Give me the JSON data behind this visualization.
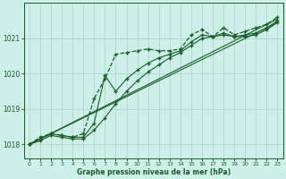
{
  "bg_color": "#cdf0e8",
  "grid_color": "#b0d8c8",
  "line_color": "#1a5c2a",
  "xlabel": "Graphe pression niveau de la mer (hPa)",
  "xlabel_color": "#1a5c2a",
  "tick_color": "#1a5c2a",
  "xlim": [
    -0.5,
    23.5
  ],
  "ylim": [
    1017.6,
    1022.0
  ],
  "yticks": [
    1018,
    1019,
    1020,
    1021
  ],
  "xticks": [
    0,
    1,
    2,
    3,
    4,
    5,
    6,
    7,
    8,
    9,
    10,
    11,
    12,
    13,
    14,
    15,
    16,
    17,
    18,
    19,
    20,
    21,
    22,
    23
  ],
  "lines": [
    {
      "x": [
        0,
        1,
        2,
        3,
        4,
        5,
        6,
        7,
        8,
        9,
        10,
        11,
        12,
        13,
        14,
        15,
        16,
        17,
        18,
        19,
        20,
        21,
        22,
        23
      ],
      "y": [
        1018.0,
        1018.2,
        1018.3,
        1018.25,
        1018.2,
        1018.3,
        1019.3,
        1019.85,
        1020.55,
        1020.6,
        1020.65,
        1020.7,
        1020.65,
        1020.65,
        1020.7,
        1021.1,
        1021.25,
        1021.05,
        1021.3,
        1021.1,
        1021.2,
        1021.3,
        1021.4,
        1021.6
      ],
      "marker": "+",
      "linestyle": "--",
      "linewidth": 0.9
    },
    {
      "x": [
        0,
        23
      ],
      "y": [
        1018.0,
        1021.55
      ],
      "marker": "None",
      "linestyle": "-",
      "linewidth": 0.8
    },
    {
      "x": [
        0,
        23
      ],
      "y": [
        1018.0,
        1021.45
      ],
      "marker": "None",
      "linestyle": "-",
      "linewidth": 0.8
    },
    {
      "x": [
        0,
        1,
        2,
        3,
        4,
        5,
        6,
        7,
        8,
        9,
        10,
        11,
        12,
        13,
        14,
        15,
        16,
        17,
        18,
        19,
        20,
        21,
        22,
        23
      ],
      "y": [
        1018.0,
        1018.15,
        1018.3,
        1018.25,
        1018.2,
        1018.2,
        1018.6,
        1019.95,
        1019.5,
        1019.85,
        1020.1,
        1020.3,
        1020.45,
        1020.55,
        1020.65,
        1020.9,
        1021.1,
        1021.05,
        1021.15,
        1021.05,
        1021.1,
        1021.15,
        1021.3,
        1021.5
      ],
      "marker": "+",
      "linestyle": "-",
      "linewidth": 0.8
    },
    {
      "x": [
        0,
        1,
        2,
        3,
        4,
        5,
        6,
        7,
        8,
        9,
        10,
        11,
        12,
        13,
        14,
        15,
        16,
        17,
        18,
        19,
        20,
        21,
        22,
        23
      ],
      "y": [
        1018.0,
        1018.1,
        1018.25,
        1018.2,
        1018.15,
        1018.15,
        1018.4,
        1018.75,
        1019.15,
        1019.5,
        1019.8,
        1020.05,
        1020.25,
        1020.45,
        1020.6,
        1020.8,
        1021.0,
        1021.05,
        1021.1,
        1021.05,
        1021.05,
        1021.1,
        1021.25,
        1021.45
      ],
      "marker": "+",
      "linestyle": "-",
      "linewidth": 0.8
    }
  ]
}
